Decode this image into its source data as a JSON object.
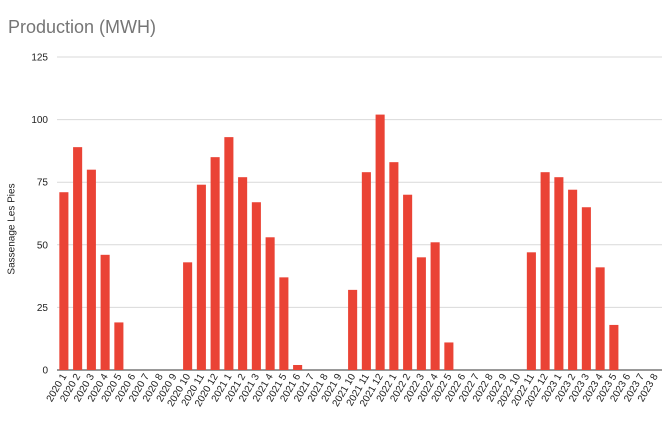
{
  "chart_data": {
    "type": "bar",
    "title": "Production (MWH)",
    "xlabel": "",
    "ylabel": "Sassenage Les Pies",
    "ylim": [
      0,
      125
    ],
    "yticks": [
      "0",
      "25",
      "50",
      "75",
      "100",
      "125"
    ],
    "grid": true,
    "bar_color": "#ea4335",
    "categories": [
      "2020 1",
      "2020 2",
      "2020 3",
      "2020 4",
      "2020 5",
      "2020 6",
      "2020 7",
      "2020 8",
      "2020 9",
      "2020 10",
      "2020 11",
      "2020 12",
      "2021 1",
      "2021 2",
      "2021 3",
      "2021 4",
      "2021 5",
      "2021 6",
      "2021 7",
      "2021 8",
      "2021 9",
      "2021 10",
      "2021 11",
      "2021 12",
      "2022 1",
      "2022 2",
      "2022 3",
      "2022 4",
      "2022 5",
      "2022 6",
      "2022 7",
      "2022 8",
      "2022 9",
      "2022 10",
      "2022 11",
      "2022 12",
      "2023 1",
      "2023 2",
      "2023 3",
      "2023 4",
      "2023 5",
      "2023 6",
      "2023 7",
      "2023 8"
    ],
    "values": [
      71,
      89,
      80,
      46,
      19,
      0,
      0,
      0,
      0,
      43,
      74,
      85,
      93,
      77,
      67,
      53,
      37,
      2,
      0,
      0,
      0,
      32,
      79,
      102,
      83,
      70,
      45,
      51,
      11,
      0,
      0,
      0,
      0,
      0,
      47,
      79,
      77,
      72,
      65,
      41,
      18,
      0,
      0,
      0
    ]
  }
}
